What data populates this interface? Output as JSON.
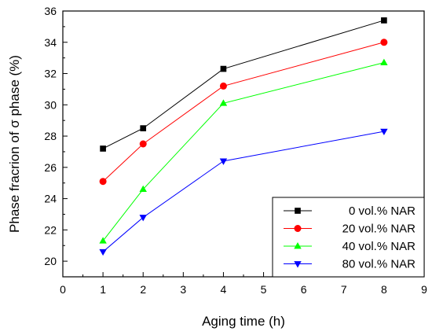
{
  "chart_data": {
    "type": "line",
    "xlabel": "Aging time (h)",
    "ylabel": "Phase fracrion of σ phase (%)",
    "xlim": [
      0,
      9
    ],
    "ylim": [
      19,
      36
    ],
    "x_ticks": [
      0,
      1,
      2,
      3,
      4,
      5,
      6,
      7,
      8,
      9
    ],
    "y_ticks": [
      20,
      22,
      24,
      26,
      28,
      30,
      32,
      34,
      36
    ],
    "x": [
      1,
      2,
      4,
      8
    ],
    "series": [
      {
        "name": "0 vol.% NAR",
        "values": [
          27.2,
          28.5,
          32.3,
          35.4
        ],
        "color": "#000000",
        "marker": "square"
      },
      {
        "name": "20 vol.% NAR",
        "values": [
          25.1,
          27.5,
          31.2,
          34.0
        ],
        "color": "#ff0000",
        "marker": "circle"
      },
      {
        "name": "40 vol.% NAR",
        "values": [
          21.3,
          24.6,
          30.1,
          32.7
        ],
        "color": "#00ff00",
        "marker": "triangle-up"
      },
      {
        "name": "80 vol.% NAR",
        "values": [
          20.6,
          22.8,
          26.4,
          28.3
        ],
        "color": "#0000ff",
        "marker": "triangle-down"
      }
    ],
    "grid": false,
    "legend_position": "bottom-right"
  }
}
